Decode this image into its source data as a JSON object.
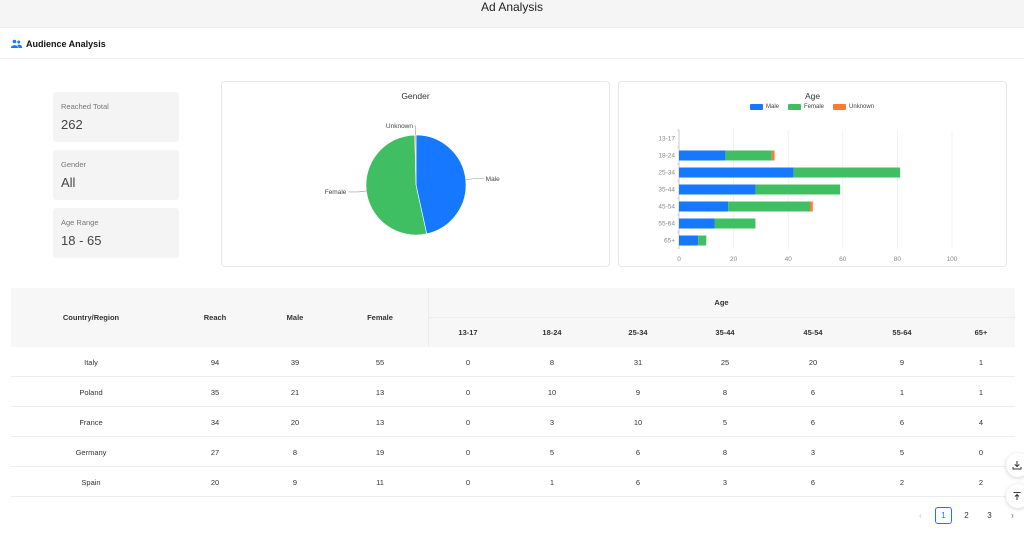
{
  "app": {
    "title": "Ad Analysis"
  },
  "section": {
    "title": "Audience Analysis",
    "icon": "users-icon"
  },
  "stats": [
    {
      "label": "Reached Total",
      "value": "262"
    },
    {
      "label": "Gender",
      "value": "All"
    },
    {
      "label": "Age Range",
      "value": "18 - 65"
    }
  ],
  "colors": {
    "male": "#1677ff",
    "female": "#3fbf62",
    "unknown": "#ff7a2e",
    "accent": "#1677ff"
  },
  "chart_data": [
    {
      "type": "pie",
      "title": "Gender",
      "labels": [
        "Male",
        "Female",
        "Unknown"
      ],
      "values": [
        122,
        139,
        1
      ]
    },
    {
      "type": "bar",
      "orientation": "horizontal",
      "stacked": true,
      "title": "Age",
      "categories": [
        "13-17",
        "18-24",
        "25-34",
        "35-44",
        "45-54",
        "55-64",
        "65+"
      ],
      "series": [
        {
          "name": "Male",
          "values": [
            0,
            17,
            42,
            28,
            18,
            13,
            7
          ]
        },
        {
          "name": "Female",
          "values": [
            0,
            17,
            39,
            31,
            30,
            15,
            3
          ]
        },
        {
          "name": "Unknown",
          "values": [
            0,
            1,
            0,
            0,
            1,
            0,
            0
          ]
        }
      ],
      "xlim": [
        0,
        100
      ],
      "xticks": [
        "0",
        "20",
        "40",
        "60",
        "80",
        "100"
      ],
      "legend": "top",
      "grid": true
    }
  ],
  "table": {
    "group_header": "Age",
    "headers": [
      "Country/Region",
      "Reach",
      "Male",
      "Female"
    ],
    "age_headers": [
      "13-17",
      "18-24",
      "25-34",
      "35-44",
      "45-54",
      "55-64",
      "65+"
    ],
    "rows": [
      [
        "Italy",
        "94",
        "39",
        "55",
        "0",
        "8",
        "31",
        "25",
        "20",
        "9",
        "1"
      ],
      [
        "Poland",
        "35",
        "21",
        "13",
        "0",
        "10",
        "9",
        "8",
        "6",
        "1",
        "1"
      ],
      [
        "France",
        "34",
        "20",
        "13",
        "0",
        "3",
        "10",
        "5",
        "6",
        "6",
        "4"
      ],
      [
        "Germany",
        "27",
        "8",
        "19",
        "0",
        "5",
        "6",
        "8",
        "3",
        "5",
        "0"
      ],
      [
        "Spain",
        "20",
        "9",
        "11",
        "0",
        "1",
        "6",
        "3",
        "6",
        "2",
        "2"
      ]
    ]
  },
  "pagination": {
    "pages": [
      "1",
      "2",
      "3"
    ],
    "current": "1"
  },
  "floating": [
    {
      "icon": "download-icon"
    },
    {
      "icon": "back-to-top-icon"
    }
  ]
}
